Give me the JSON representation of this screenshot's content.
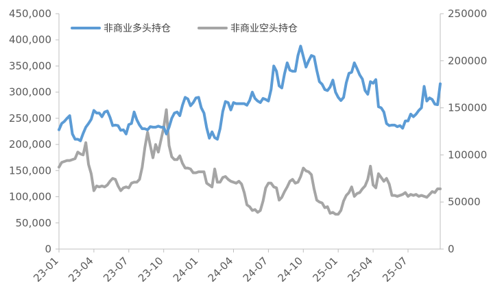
{
  "chart_data": {
    "type": "line",
    "title": "",
    "xlabel": "",
    "ylabel": "",
    "legend_position": "top-left",
    "grid": false,
    "x_tick_labels": [
      "23-01",
      "23-04",
      "23-07",
      "23-10",
      "24-01",
      "24-04",
      "24-07",
      "24-10",
      "25-01",
      "25-04",
      "25-07"
    ],
    "y_left": {
      "range": [
        0,
        450000
      ],
      "tick_labels": [
        "0",
        "50,000",
        "100,000",
        "150,000",
        "200,000",
        "250,000",
        "300,000",
        "350,000",
        "400,000",
        "450,000"
      ]
    },
    "y_right": {
      "range": [
        0,
        250000
      ],
      "tick_labels": [
        "0",
        "50000",
        "100000",
        "150000",
        "200000",
        "250000"
      ]
    },
    "series": [
      {
        "name": "非商业多头持仓",
        "axis": "left",
        "color": "#5b9bd5",
        "values": [
          228000,
          240000,
          244000,
          250000,
          255000,
          220000,
          210000,
          210000,
          207000,
          221000,
          233000,
          240000,
          248000,
          265000,
          260000,
          260000,
          253000,
          262000,
          264000,
          252000,
          236000,
          237000,
          236000,
          227000,
          228000,
          220000,
          238000,
          240000,
          262000,
          247000,
          237000,
          230000,
          230000,
          228000,
          234000,
          233000,
          233000,
          235000,
          233000,
          233000,
          220000,
          233000,
          250000,
          260000,
          262000,
          255000,
          275000,
          290000,
          287000,
          274000,
          280000,
          289000,
          290000,
          270000,
          260000,
          232000,
          212000,
          224000,
          213000,
          210000,
          230000,
          263000,
          282000,
          280000,
          266000,
          280000,
          278000,
          278000,
          278000,
          278000,
          275000,
          284000,
          300000,
          288000,
          283000,
          280000,
          288000,
          286000,
          283000,
          305000,
          350000,
          340000,
          312000,
          308000,
          335000,
          356000,
          342000,
          340000,
          340000,
          370000,
          388000,
          368000,
          348000,
          360000,
          370000,
          368000,
          342000,
          320000,
          315000,
          305000,
          303000,
          310000,
          323000,
          300000,
          290000,
          284000,
          290000,
          318000,
          336000,
          338000,
          356000,
          345000,
          333000,
          325000,
          303000,
          296000,
          320000,
          317000,
          324000,
          272000,
          270000,
          262000,
          240000,
          236000,
          237000,
          237000,
          234000,
          236000,
          231000,
          245000,
          245000,
          258000,
          253000,
          258000,
          265000,
          270000,
          311000,
          283000,
          289000,
          286000,
          277000,
          276000,
          316000
        ]
      },
      {
        "name": "非商业空头持仓",
        "axis": "right",
        "color": "#a5a5a5",
        "values": [
          87000,
          92000,
          93000,
          94000,
          94000,
          95000,
          96000,
          103000,
          101000,
          100000,
          113000,
          90000,
          80000,
          62000,
          67000,
          66000,
          67000,
          66000,
          68000,
          72000,
          75000,
          74000,
          67000,
          62000,
          65000,
          66000,
          65000,
          70000,
          71000,
          71000,
          74000,
          87000,
          108000,
          124000,
          110000,
          97000,
          111000,
          103000,
          116000,
          129000,
          148000,
          110000,
          98000,
          95000,
          95000,
          99000,
          91000,
          86000,
          86000,
          85000,
          81000,
          81000,
          82000,
          82000,
          82000,
          70000,
          68000,
          66000,
          85000,
          71000,
          71000,
          76000,
          77000,
          74000,
          72000,
          71000,
          70000,
          72000,
          69000,
          60000,
          47000,
          45000,
          41000,
          42000,
          39000,
          41000,
          51000,
          65000,
          70000,
          70000,
          66000,
          65000,
          52000,
          55000,
          61000,
          66000,
          72000,
          74000,
          70000,
          71000,
          77000,
          86000,
          83000,
          82000,
          79000,
          64000,
          52000,
          50000,
          49000,
          44000,
          45000,
          38000,
          39000,
          37000,
          37000,
          41000,
          51000,
          57000,
          60000,
          66000,
          56000,
          59000,
          60000,
          64000,
          67000,
          74000,
          88000,
          68000,
          65000,
          80000,
          76000,
          72000,
          75000,
          69000,
          57000,
          57000,
          56000,
          57000,
          58000,
          60000,
          56000,
          58000,
          57000,
          58000,
          56000,
          57000,
          56000,
          55000,
          58000,
          61000,
          60000,
          64000,
          64000
        ]
      }
    ]
  }
}
